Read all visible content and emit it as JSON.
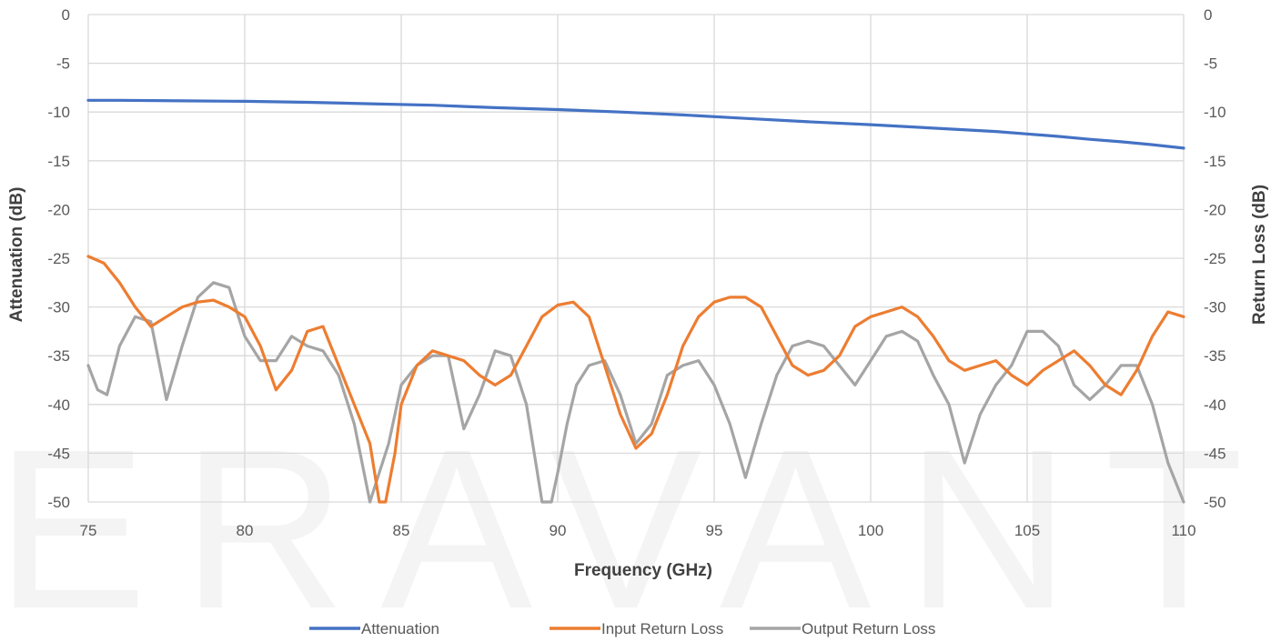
{
  "watermark": "ERAVANT",
  "chart_data": {
    "type": "line",
    "title": "",
    "xlabel": "Frequency (GHz)",
    "ylabel": "Attenuation (dB)",
    "ylabel_right": "Return Loss (dB)",
    "xlim": [
      75,
      110
    ],
    "ylim": [
      -50,
      0
    ],
    "ylim_right": [
      -50,
      0
    ],
    "x_ticks": [
      "75",
      "80",
      "85",
      "90",
      "95",
      "100",
      "105",
      "110"
    ],
    "y_ticks": [
      "0",
      "-5",
      "-10",
      "-15",
      "-20",
      "-25",
      "-30",
      "-35",
      "-40",
      "-45",
      "-50"
    ],
    "y_ticks_right": [
      "0",
      "-5",
      "-10",
      "-15",
      "-20",
      "-25",
      "-30",
      "-35",
      "-40",
      "-45",
      "-50"
    ],
    "grid": true,
    "legend_position": "bottom",
    "series": [
      {
        "name": "Attenuation",
        "color": "#4472C4",
        "x": [
          75,
          76,
          78,
          80,
          82,
          84,
          86,
          88,
          90,
          92,
          94,
          96,
          98,
          100,
          102,
          104,
          105,
          106,
          107,
          108,
          109,
          110
        ],
        "y": [
          -8.8,
          -8.8,
          -8.85,
          -8.9,
          -9.0,
          -9.15,
          -9.3,
          -9.55,
          -9.75,
          -10.0,
          -10.3,
          -10.65,
          -11.0,
          -11.3,
          -11.65,
          -12.0,
          -12.25,
          -12.5,
          -12.8,
          -13.05,
          -13.35,
          -13.7
        ]
      },
      {
        "name": "Input Return Loss",
        "color": "#ED7D31",
        "x": [
          75,
          75.5,
          76,
          76.5,
          77,
          77.5,
          78,
          78.5,
          79,
          79.5,
          80,
          80.5,
          81,
          81.5,
          82,
          82.5,
          83,
          83.5,
          84,
          84.3,
          84.5,
          84.8,
          85,
          85.5,
          86,
          86.5,
          87,
          87.5,
          88,
          88.5,
          89,
          89.5,
          90,
          90.5,
          91,
          91.5,
          92,
          92.5,
          93,
          93.5,
          94,
          94.5,
          95,
          95.5,
          96,
          96.5,
          97,
          97.5,
          98,
          98.5,
          99,
          99.5,
          100,
          100.5,
          101,
          101.5,
          102,
          102.5,
          103,
          103.5,
          104,
          104.5,
          105,
          105.5,
          106,
          106.5,
          107,
          107.5,
          108,
          108.5,
          109,
          109.5,
          110
        ],
        "y": [
          -24.8,
          -25.5,
          -27.5,
          -30.0,
          -32.0,
          -31.0,
          -30.0,
          -29.5,
          -29.3,
          -30.0,
          -31.0,
          -34.0,
          -38.5,
          -36.5,
          -32.5,
          -32.0,
          -36.0,
          -40.0,
          -44.0,
          -50.0,
          -50.0,
          -45.0,
          -40.0,
          -36.0,
          -34.5,
          -35.0,
          -35.5,
          -37.0,
          -38.0,
          -37.0,
          -34.0,
          -31.0,
          -29.8,
          -29.5,
          -31.0,
          -36.0,
          -41.0,
          -44.5,
          -43.0,
          -39.0,
          -34.0,
          -31.0,
          -29.5,
          -29.0,
          -29.0,
          -30.0,
          -33.0,
          -36.0,
          -37.0,
          -36.5,
          -35.0,
          -32.0,
          -31.0,
          -30.5,
          -30.0,
          -31.0,
          -33.0,
          -35.5,
          -36.5,
          -36.0,
          -35.5,
          -37.0,
          -38.0,
          -36.5,
          -35.5,
          -34.5,
          -36.0,
          -38.0,
          -39.0,
          -36.5,
          -33.0,
          -30.5,
          -31.0
        ]
      },
      {
        "name": "Output Return Loss",
        "color": "#A5A5A5",
        "x": [
          75,
          75.3,
          75.6,
          76,
          76.5,
          77,
          77.5,
          78,
          78.5,
          79,
          79.5,
          80,
          80.5,
          81,
          81.5,
          82,
          82.5,
          83,
          83.5,
          84,
          84.3,
          84.6,
          85,
          85.5,
          86,
          86.5,
          87,
          87.5,
          88,
          88.5,
          89,
          89.5,
          89.8,
          90,
          90.3,
          90.6,
          91,
          91.5,
          92,
          92.5,
          93,
          93.5,
          94,
          94.5,
          95,
          95.5,
          96,
          96.5,
          97,
          97.5,
          98,
          98.5,
          99,
          99.5,
          100,
          100.5,
          101,
          101.5,
          102,
          102.5,
          103,
          103.5,
          104,
          104.5,
          105,
          105.5,
          106,
          106.5,
          107,
          107.5,
          108,
          108.5,
          109,
          109.5,
          110
        ],
        "y": [
          -36.0,
          -38.5,
          -39.0,
          -34.0,
          -31.0,
          -31.5,
          -39.5,
          -34.0,
          -29.0,
          -27.5,
          -28.0,
          -33.0,
          -35.5,
          -35.5,
          -33.0,
          -34.0,
          -34.5,
          -37.0,
          -42.0,
          -50.0,
          -47.0,
          -44.0,
          -38.0,
          -36.0,
          -35.0,
          -35.0,
          -42.5,
          -39.0,
          -34.5,
          -35.0,
          -40.0,
          -50.0,
          -50.0,
          -47.0,
          -42.0,
          -38.0,
          -36.0,
          -35.5,
          -39.0,
          -44.0,
          -42.0,
          -37.0,
          -36.0,
          -35.5,
          -38.0,
          -42.0,
          -47.5,
          -42.0,
          -37.0,
          -34.0,
          -33.5,
          -34.0,
          -36.0,
          -38.0,
          -35.5,
          -33.0,
          -32.5,
          -33.5,
          -37.0,
          -40.0,
          -46.0,
          -41.0,
          -38.0,
          -36.0,
          -32.5,
          -32.5,
          -34.0,
          -38.0,
          -39.5,
          -38.0,
          -36.0,
          -36.0,
          -40.0,
          -46.0,
          -50.0
        ]
      }
    ]
  }
}
